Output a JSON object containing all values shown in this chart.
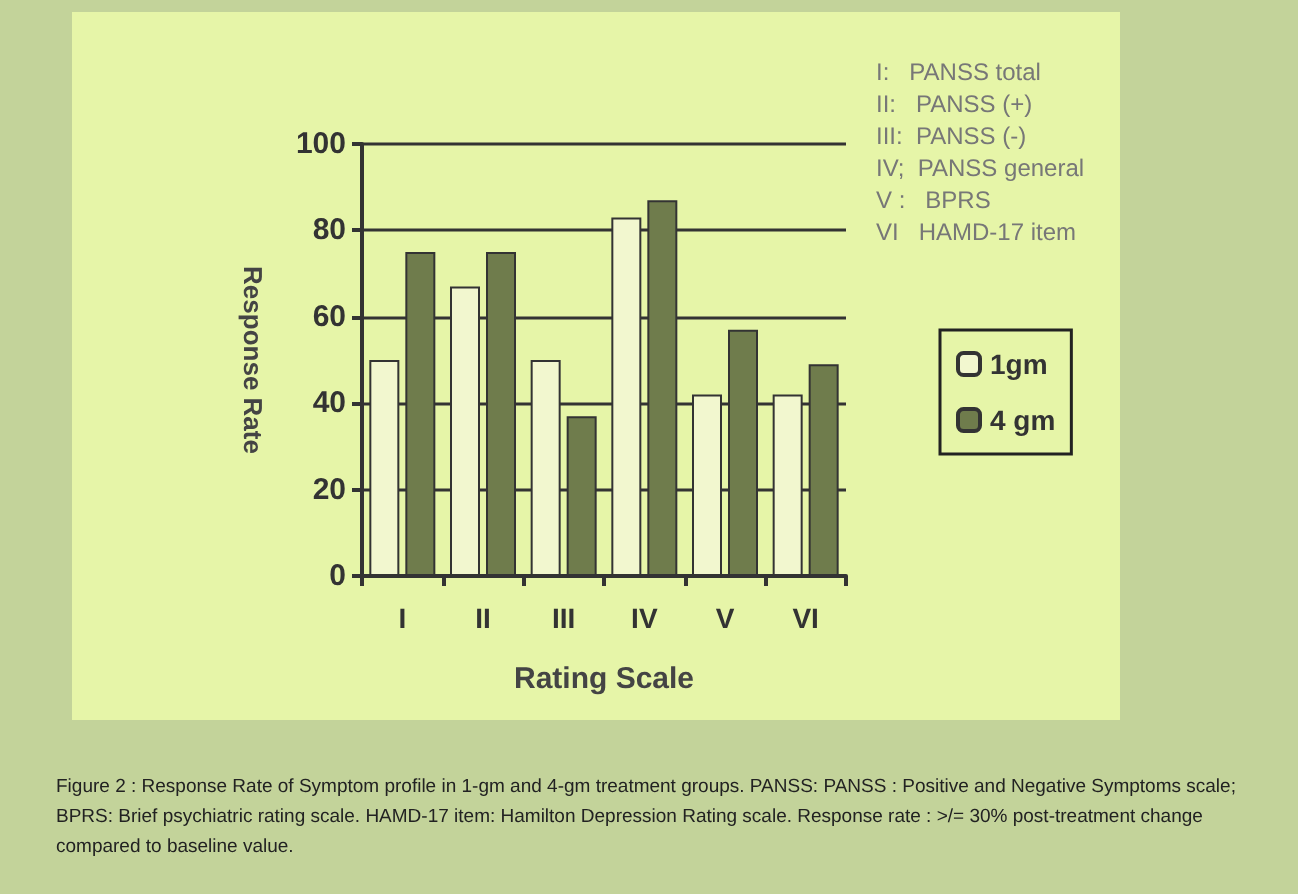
{
  "chart_data": {
    "type": "bar",
    "xlabel": "Rating Scale",
    "ylabel": "Response Rate",
    "categories": [
      "I",
      "II",
      "III",
      "IV",
      "V",
      "VI"
    ],
    "series": [
      {
        "name": "1gm",
        "color": "#f2f7cf",
        "values": [
          50,
          67,
          50,
          83,
          42,
          42
        ]
      },
      {
        "name": "4 gm",
        "color": "#6f7c4c",
        "values": [
          75,
          75,
          37,
          87,
          57,
          49
        ]
      }
    ],
    "ylim": [
      0,
      100
    ],
    "yticks": [
      0,
      20,
      40,
      60,
      80,
      100
    ],
    "grid": "y",
    "legend": "right",
    "annotations": [
      "I:   PANSS total",
      "II:   PANSS (+)",
      "III:  PANSS (-)",
      "IV;  PANSS general",
      "V :   BPRS",
      "VI   HAMD-17 item",
      "Figure 2 : Response Rate of Symptom  profile in 1-gm and 4-gm treatment groups. PANSS:  PANSS : Positive and Negative Symptoms  scale; BPRS: Brief psychiatric rating scale.  HAMD-17 item: Hamilton Depression Rating scale. Response rate : >/= 30% post-treatment change compared to baseline value."
    ]
  }
}
